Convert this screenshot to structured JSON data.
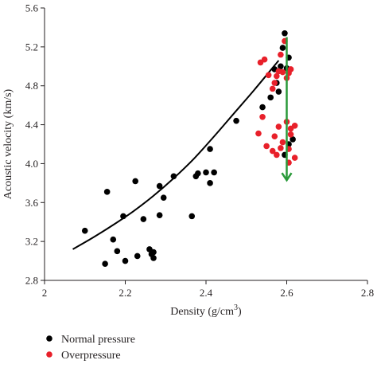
{
  "chart_data": {
    "type": "scatter",
    "xlabel": "Density (g/cm",
    "xlabel_sup": "3",
    "xlabel_close": ")",
    "ylabel": "Acoustic velocity (km/s)",
    "xlim": [
      2.0,
      2.8
    ],
    "ylim": [
      2.8,
      5.6
    ],
    "x_ticks": [
      {
        "value": 2.0,
        "label": "2"
      },
      {
        "value": 2.2,
        "label": "2.2"
      },
      {
        "value": 2.4,
        "label": "2.4"
      },
      {
        "value": 2.6,
        "label": "2.6"
      },
      {
        "value": 2.8,
        "label": "2.8"
      }
    ],
    "y_ticks": [
      {
        "value": 2.8,
        "label": "2.8"
      },
      {
        "value": 3.2,
        "label": "3.2"
      },
      {
        "value": 3.6,
        "label": "3.6"
      },
      {
        "value": 4.0,
        "label": "4.0"
      },
      {
        "value": 4.4,
        "label": "4.4"
      },
      {
        "value": 4.8,
        "label": "4.8"
      },
      {
        "value": 5.2,
        "label": "5.2"
      },
      {
        "value": 5.6,
        "label": "5.6"
      }
    ],
    "grid": false,
    "legend_position": "bottom-left",
    "series": [
      {
        "name": "Normal pressure",
        "color": "#000000",
        "points": [
          [
            2.1,
            3.31
          ],
          [
            2.15,
            2.97
          ],
          [
            2.155,
            3.71
          ],
          [
            2.17,
            3.22
          ],
          [
            2.18,
            3.1
          ],
          [
            2.195,
            3.46
          ],
          [
            2.2,
            3.0
          ],
          [
            2.225,
            3.82
          ],
          [
            2.23,
            3.05
          ],
          [
            2.245,
            3.43
          ],
          [
            2.26,
            3.12
          ],
          [
            2.265,
            3.07
          ],
          [
            2.27,
            3.03
          ],
          [
            2.27,
            3.09
          ],
          [
            2.285,
            3.47
          ],
          [
            2.285,
            3.77
          ],
          [
            2.295,
            3.65
          ],
          [
            2.32,
            3.87
          ],
          [
            2.365,
            3.46
          ],
          [
            2.375,
            3.87
          ],
          [
            2.38,
            3.9
          ],
          [
            2.4,
            3.91
          ],
          [
            2.41,
            3.8
          ],
          [
            2.41,
            4.15
          ],
          [
            2.42,
            3.91
          ],
          [
            2.475,
            4.44
          ],
          [
            2.54,
            4.58
          ],
          [
            2.56,
            4.68
          ],
          [
            2.57,
            4.97
          ],
          [
            2.575,
            4.83
          ],
          [
            2.58,
            4.74
          ],
          [
            2.585,
            5.0
          ],
          [
            2.59,
            5.19
          ],
          [
            2.595,
            5.34
          ],
          [
            2.6,
            4.98
          ],
          [
            2.605,
            5.09
          ],
          [
            2.595,
            4.09
          ],
          [
            2.605,
            4.2
          ],
          [
            2.615,
            4.25
          ]
        ]
      },
      {
        "name": "Overpressure",
        "color": "#e8202a",
        "points": [
          [
            2.53,
            4.31
          ],
          [
            2.535,
            5.04
          ],
          [
            2.54,
            4.48
          ],
          [
            2.545,
            5.07
          ],
          [
            2.555,
            4.91
          ],
          [
            2.565,
            4.77
          ],
          [
            2.57,
            4.83
          ],
          [
            2.575,
            4.9
          ],
          [
            2.58,
            4.95
          ],
          [
            2.585,
            5.12
          ],
          [
            2.59,
            4.94
          ],
          [
            2.6,
            4.88
          ],
          [
            2.605,
            4.93
          ],
          [
            2.61,
            4.97
          ],
          [
            2.595,
            5.26
          ],
          [
            2.55,
            4.18
          ],
          [
            2.565,
            4.13
          ],
          [
            2.57,
            4.28
          ],
          [
            2.575,
            4.09
          ],
          [
            2.585,
            4.16
          ],
          [
            2.59,
            4.22
          ],
          [
            2.6,
            4.43
          ],
          [
            2.605,
            4.15
          ],
          [
            2.61,
            4.3
          ],
          [
            2.61,
            4.36
          ],
          [
            2.62,
            4.39
          ],
          [
            2.605,
            4.01
          ],
          [
            2.62,
            4.06
          ],
          [
            2.58,
            4.38
          ]
        ]
      }
    ],
    "trend_curve": [
      [
        2.07,
        3.12
      ],
      [
        2.12,
        3.24
      ],
      [
        2.17,
        3.37
      ],
      [
        2.22,
        3.51
      ],
      [
        2.27,
        3.67
      ],
      [
        2.32,
        3.85
      ],
      [
        2.37,
        4.05
      ],
      [
        2.42,
        4.28
      ],
      [
        2.47,
        4.52
      ],
      [
        2.52,
        4.76
      ],
      [
        2.58,
        5.06
      ]
    ],
    "arrow": {
      "color": "#2a9a3a",
      "x": 2.6,
      "y_start": 5.3,
      "y_end": 3.83
    }
  }
}
